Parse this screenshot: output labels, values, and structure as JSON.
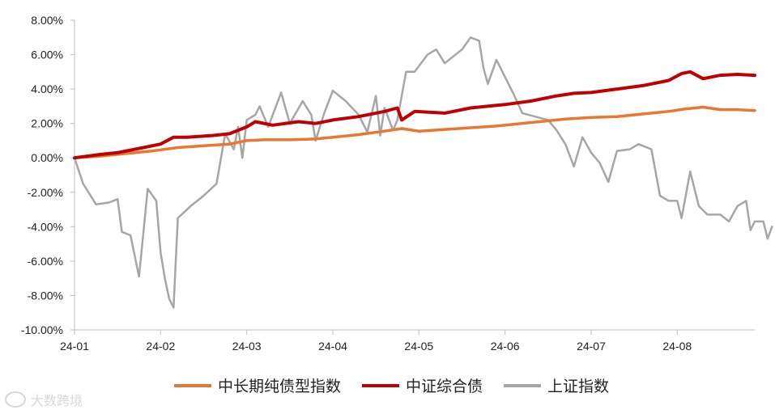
{
  "chart_data": {
    "type": "line",
    "y_ticks": [
      "8.00%",
      "6.00%",
      "4.00%",
      "2.00%",
      "0.00%",
      "-2.00%",
      "-4.00%",
      "-6.00%",
      "-8.00%",
      "-10.00%"
    ],
    "x_ticks": [
      "24-01",
      "24-02",
      "24-03",
      "24-04",
      "24-05",
      "24-06",
      "24-07",
      "24-08"
    ],
    "ylim": [
      -10,
      8
    ],
    "x_range_months": [
      0,
      7.9
    ],
    "legend_position": "bottom",
    "grid": false,
    "series": [
      {
        "name": "中长期纯债型指数",
        "color": "#E8782F",
        "points": [
          [
            0,
            0.0
          ],
          [
            0.3,
            0.1
          ],
          [
            0.6,
            0.25
          ],
          [
            0.9,
            0.4
          ],
          [
            1.2,
            0.6
          ],
          [
            1.5,
            0.7
          ],
          [
            1.8,
            0.8
          ],
          [
            2.0,
            1.0
          ],
          [
            2.2,
            1.05
          ],
          [
            2.5,
            1.05
          ],
          [
            2.8,
            1.1
          ],
          [
            3.0,
            1.2
          ],
          [
            3.3,
            1.35
          ],
          [
            3.6,
            1.55
          ],
          [
            3.8,
            1.7
          ],
          [
            4.0,
            1.55
          ],
          [
            4.3,
            1.65
          ],
          [
            4.6,
            1.75
          ],
          [
            4.9,
            1.85
          ],
          [
            5.1,
            1.95
          ],
          [
            5.4,
            2.1
          ],
          [
            5.7,
            2.25
          ],
          [
            6.0,
            2.35
          ],
          [
            6.3,
            2.4
          ],
          [
            6.6,
            2.55
          ],
          [
            6.9,
            2.7
          ],
          [
            7.1,
            2.85
          ],
          [
            7.3,
            2.95
          ],
          [
            7.5,
            2.8
          ],
          [
            7.7,
            2.8
          ],
          [
            7.9,
            2.75
          ]
        ]
      },
      {
        "name": "中证综合债",
        "color": "#C00000",
        "points": [
          [
            0,
            0.0
          ],
          [
            0.3,
            0.2
          ],
          [
            0.5,
            0.3
          ],
          [
            0.8,
            0.6
          ],
          [
            1.0,
            0.8
          ],
          [
            1.15,
            1.2
          ],
          [
            1.3,
            1.2
          ],
          [
            1.6,
            1.3
          ],
          [
            1.8,
            1.4
          ],
          [
            2.0,
            1.8
          ],
          [
            2.1,
            2.1
          ],
          [
            2.3,
            1.9
          ],
          [
            2.6,
            2.1
          ],
          [
            2.8,
            2.0
          ],
          [
            3.0,
            2.2
          ],
          [
            3.3,
            2.4
          ],
          [
            3.6,
            2.7
          ],
          [
            3.75,
            2.9
          ],
          [
            3.8,
            2.2
          ],
          [
            3.95,
            2.7
          ],
          [
            4.3,
            2.6
          ],
          [
            4.6,
            2.9
          ],
          [
            5.0,
            3.1
          ],
          [
            5.3,
            3.3
          ],
          [
            5.6,
            3.6
          ],
          [
            5.8,
            3.75
          ],
          [
            6.0,
            3.8
          ],
          [
            6.3,
            4.0
          ],
          [
            6.6,
            4.2
          ],
          [
            6.9,
            4.5
          ],
          [
            7.05,
            4.9
          ],
          [
            7.15,
            5.0
          ],
          [
            7.3,
            4.6
          ],
          [
            7.5,
            4.8
          ],
          [
            7.7,
            4.85
          ],
          [
            7.9,
            4.8
          ]
        ]
      },
      {
        "name": "上证指数",
        "color": "#A6A6A6",
        "points": [
          [
            0,
            0.0
          ],
          [
            0.1,
            -1.5
          ],
          [
            0.25,
            -2.7
          ],
          [
            0.4,
            -2.6
          ],
          [
            0.5,
            -2.4
          ],
          [
            0.55,
            -4.3
          ],
          [
            0.65,
            -4.5
          ],
          [
            0.75,
            -6.9
          ],
          [
            0.85,
            -1.8
          ],
          [
            0.95,
            -2.5
          ],
          [
            1.0,
            -5.5
          ],
          [
            1.05,
            -7.0
          ],
          [
            1.1,
            -8.2
          ],
          [
            1.15,
            -8.7
          ],
          [
            1.2,
            -3.5
          ],
          [
            1.35,
            -2.8
          ],
          [
            1.5,
            -2.2
          ],
          [
            1.65,
            -1.5
          ],
          [
            1.75,
            1.4
          ],
          [
            1.85,
            0.5
          ],
          [
            1.9,
            1.8
          ],
          [
            1.95,
            0.0
          ],
          [
            2.0,
            2.2
          ],
          [
            2.1,
            2.5
          ],
          [
            2.15,
            3.0
          ],
          [
            2.25,
            1.8
          ],
          [
            2.4,
            3.8
          ],
          [
            2.5,
            2.0
          ],
          [
            2.65,
            3.3
          ],
          [
            2.75,
            2.5
          ],
          [
            2.8,
            1.0
          ],
          [
            2.9,
            2.6
          ],
          [
            3.0,
            3.9
          ],
          [
            3.15,
            3.3
          ],
          [
            3.3,
            2.5
          ],
          [
            3.4,
            1.5
          ],
          [
            3.5,
            3.6
          ],
          [
            3.55,
            1.3
          ],
          [
            3.6,
            2.9
          ],
          [
            3.7,
            1.6
          ],
          [
            3.75,
            2.2
          ],
          [
            3.85,
            5.0
          ],
          [
            3.95,
            5.0
          ],
          [
            4.1,
            6.0
          ],
          [
            4.2,
            6.3
          ],
          [
            4.3,
            5.5
          ],
          [
            4.4,
            5.9
          ],
          [
            4.5,
            6.3
          ],
          [
            4.6,
            7.0
          ],
          [
            4.7,
            6.8
          ],
          [
            4.75,
            5.2
          ],
          [
            4.8,
            4.3
          ],
          [
            4.9,
            5.7
          ],
          [
            5.0,
            4.7
          ],
          [
            5.1,
            3.7
          ],
          [
            5.2,
            2.6
          ],
          [
            5.35,
            2.4
          ],
          [
            5.5,
            2.2
          ],
          [
            5.6,
            1.6
          ],
          [
            5.7,
            0.8
          ],
          [
            5.8,
            -0.5
          ],
          [
            5.9,
            1.2
          ],
          [
            6.0,
            0.3
          ],
          [
            6.1,
            -0.3
          ],
          [
            6.2,
            -1.4
          ],
          [
            6.3,
            0.4
          ],
          [
            6.45,
            0.5
          ],
          [
            6.55,
            0.8
          ],
          [
            6.7,
            0.5
          ],
          [
            6.8,
            -2.2
          ],
          [
            6.9,
            -2.5
          ],
          [
            7.0,
            -2.5
          ],
          [
            7.05,
            -3.5
          ],
          [
            7.15,
            -0.8
          ],
          [
            7.25,
            -2.8
          ],
          [
            7.35,
            -3.3
          ],
          [
            7.5,
            -3.3
          ],
          [
            7.6,
            -3.7
          ],
          [
            7.7,
            -2.8
          ],
          [
            7.8,
            -2.5
          ],
          [
            7.85,
            -4.2
          ],
          [
            7.9,
            -3.7
          ],
          [
            8.0,
            -3.7
          ],
          [
            8.05,
            -4.7
          ],
          [
            8.1,
            -4.0
          ]
        ]
      }
    ]
  },
  "watermark": {
    "text": "大数跨境"
  }
}
